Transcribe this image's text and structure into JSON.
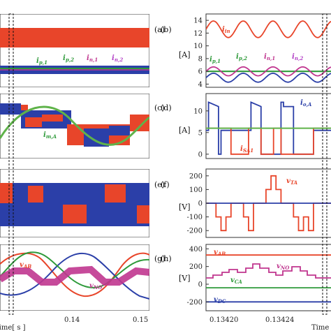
{
  "chart_data": [
    {
      "panel": "(a)",
      "type": "line",
      "series": [
        {
          "name": "i_in",
          "color": "#e8452a"
        },
        {
          "name": "i_p,1",
          "color": "#2e9a3a"
        },
        {
          "name": "i_p,2",
          "color": "#2e9a3a"
        },
        {
          "name": "i_n,1",
          "color": "#c0368f"
        },
        {
          "name": "i_n,2",
          "color": "#2b3fa8"
        }
      ]
    },
    {
      "panel": "(b)",
      "type": "line",
      "ylabel": "[A]",
      "yticks": [
        4,
        6,
        8,
        10,
        12,
        14
      ],
      "ylim": [
        3.5,
        15
      ],
      "series": [
        {
          "name": "i_in",
          "color": "#e8452a",
          "mean": 12.6,
          "ripple": 1.3,
          "cycles": 4.2
        },
        {
          "name": "i_p,1",
          "color": "#2e9a3a",
          "mean": 6.0,
          "ripple": 0.1,
          "cycles": 0
        },
        {
          "name": "i_p,2",
          "color": "#2e9a3a",
          "mean": 6.0,
          "ripple": 0.1,
          "cycles": 0
        },
        {
          "name": "i_n,1",
          "color": "#c0368f",
          "mean": 6.0,
          "ripple": 0.7,
          "cycles": 4.2
        },
        {
          "name": "i_n,2",
          "color": "#2b3fa8",
          "mean": 5.0,
          "ripple": 0.7,
          "cycles": 4.2
        }
      ]
    },
    {
      "panel": "(c)",
      "type": "line",
      "series": [
        {
          "name": "i_m,A",
          "color": "#5fb34a"
        },
        {
          "name": "i_o,A",
          "color": "#2b3fa8"
        }
      ]
    },
    {
      "panel": "(d)",
      "type": "line",
      "ylabel": "[A]",
      "yticks": [
        0,
        5,
        10
      ],
      "ylim": [
        -1,
        14
      ],
      "series": [
        {
          "name": "i_o,A",
          "color": "#2b3fa8",
          "x": [
            0,
            0.02,
            0.02,
            0.1,
            0.1,
            0.12,
            0.12,
            0.2,
            0.2,
            0.36,
            0.36,
            0.44,
            0.44,
            0.6,
            0.6,
            0.62,
            0.62,
            0.7,
            0.7,
            0.86,
            0.86,
            1.0
          ],
          "y": [
            5.5,
            5.5,
            12,
            11,
            0,
            0,
            5.5,
            5.5,
            5.5,
            5.5,
            12,
            11,
            0,
            0,
            12,
            12,
            11,
            11,
            0,
            0,
            5.5,
            5.5
          ]
        },
        {
          "name": "i_SA1",
          "color": "#e8452a",
          "x": [
            0,
            0.2,
            0.2,
            0.34,
            0.34,
            0.44,
            0.44,
            0.54,
            0.54,
            0.6,
            0.6,
            0.86,
            0.86,
            1.0
          ],
          "y": [
            6,
            6,
            0,
            0,
            6,
            6,
            0,
            0,
            6,
            6,
            0,
            0,
            6,
            6
          ]
        },
        {
          "name": "i_m,A",
          "color": "#5fb34a",
          "x": [
            0,
            1.0
          ],
          "y": [
            6,
            6
          ]
        }
      ]
    },
    {
      "panel": "(e)",
      "type": "line",
      "ylabel": "[V]"
    },
    {
      "panel": "(f)",
      "type": "line",
      "ylabel": "[V]",
      "yticks": [
        -200,
        -100,
        0,
        100,
        200
      ],
      "ylim": [
        -250,
        250
      ],
      "series": [
        {
          "name": "v_TA",
          "color": "#e8452a",
          "x": [
            0,
            0.08,
            0.08,
            0.12,
            0.12,
            0.16,
            0.16,
            0.2,
            0.2,
            0.3,
            0.3,
            0.34,
            0.34,
            0.38,
            0.38,
            0.48,
            0.48,
            0.52,
            0.52,
            0.56,
            0.56,
            0.6,
            0.6,
            0.7,
            0.7,
            0.74,
            0.74,
            0.78,
            0.78,
            0.82,
            0.82,
            0.86,
            0.86,
            1.0
          ],
          "y": [
            0,
            0,
            -100,
            -100,
            -200,
            -200,
            -100,
            -100,
            0,
            0,
            -100,
            -100,
            -200,
            -200,
            0,
            0,
            100,
            100,
            200,
            200,
            100,
            100,
            0,
            0,
            -100,
            -100,
            -200,
            -200,
            -100,
            -100,
            -200,
            -200,
            0,
            0
          ]
        },
        {
          "name": "v_ref",
          "color": "#2b3fa8",
          "x": [
            0,
            1.0
          ],
          "y": [
            0,
            0
          ]
        }
      ]
    },
    {
      "panel": "(g)",
      "type": "line",
      "xlabel": "Time[ s ]",
      "xticks": [
        0.14,
        0.15
      ],
      "series": [
        {
          "name": "v_AB",
          "color": "#e8452a"
        },
        {
          "name": "v_NO",
          "color": "#c0368f"
        }
      ]
    },
    {
      "panel": "(h)",
      "type": "line",
      "ylabel": "[V]",
      "xlabel": "Time",
      "xticks": [
        0.1342,
        0.13424
      ],
      "yticks": [
        -200,
        0,
        200,
        400
      ],
      "ylim": [
        -300,
        450
      ],
      "series": [
        {
          "name": "v_AB",
          "color": "#e8452a",
          "x": [
            0,
            1.0
          ],
          "y": [
            330,
            330
          ]
        },
        {
          "name": "v_NO",
          "color": "#c0368f"
        },
        {
          "name": "v_CA",
          "color": "#2e9a3a",
          "x": [
            0,
            1.0
          ],
          "y": [
            -40,
            -40
          ]
        },
        {
          "name": "v_DC",
          "color": "#2b3fa8",
          "x": [
            0,
            1.0
          ],
          "y": [
            -200,
            -200
          ]
        }
      ]
    }
  ],
  "labels": {
    "a": "(a)",
    "b": "(b)",
    "c": "(c)",
    "d": "(d)",
    "e": "(e)",
    "f": "(f)",
    "g": "(g)",
    "h": "(h)",
    "unit_b": "[A]",
    "unit_d": "[A]",
    "unit_f": "[V]",
    "unit_h": "[V]",
    "xlabel_left": "Time[ s ]",
    "xlabel_right": "Time",
    "xtick_left": [
      "0.14",
      "0.15"
    ],
    "xtick_right": [
      "0.13420",
      "0.13424"
    ],
    "yticks_b": [
      "4",
      "6",
      "8",
      "10",
      "12",
      "14"
    ],
    "yticks_d": [
      "0",
      "5",
      "10"
    ],
    "yticks_f": [
      "-200",
      "-100",
      "0",
      "100",
      "200"
    ],
    "yticks_h": [
      "-200",
      "0",
      "200",
      "400"
    ]
  },
  "signal_labels": {
    "a_i_p1": "i",
    "a_i_p1_sub": "p,1",
    "a_i_p2": "i",
    "a_i_p2_sub": "p,2",
    "a_i_n1": "i",
    "a_i_n1_sub": "n,1",
    "a_i_n2": "i",
    "a_i_n2_sub": "n,2",
    "b_i_in": "i",
    "b_i_in_sub": "in",
    "b_i_p1": "i",
    "b_i_p1_sub": "p,1",
    "b_i_p2": "i",
    "b_i_p2_sub": "p,2",
    "b_i_n1": "i",
    "b_i_n1_sub": "n,1",
    "b_i_n2": "i",
    "b_i_n2_sub": "n,2",
    "c_i_mA": "i",
    "c_i_mA_sub": "m,A",
    "d_i_oA": "i",
    "d_i_oA_sub": "o,A",
    "d_i_SA1": "i",
    "d_i_SA1_sub": "SA1",
    "f_v_TA": "v",
    "f_v_TA_sub": "TA",
    "g_v_AB": "v",
    "g_v_AB_sub": "AB",
    "g_v_NO": "v",
    "g_v_NO_sub": "NO",
    "h_v_AB": "v",
    "h_v_AB_sub": "AB",
    "h_v_NO": "v",
    "h_v_NO_sub": "NO",
    "h_v_CA": "v",
    "h_v_CA_sub": "CA",
    "h_v_DC": "v",
    "h_v_DC_sub": "DC"
  },
  "colors": {
    "red": "#e8452a",
    "blue": "#2b3fa8",
    "green": "#2e9a3a",
    "lightgreen": "#5fb34a",
    "magenta": "#c0368f",
    "violet": "#b23fc6"
  }
}
